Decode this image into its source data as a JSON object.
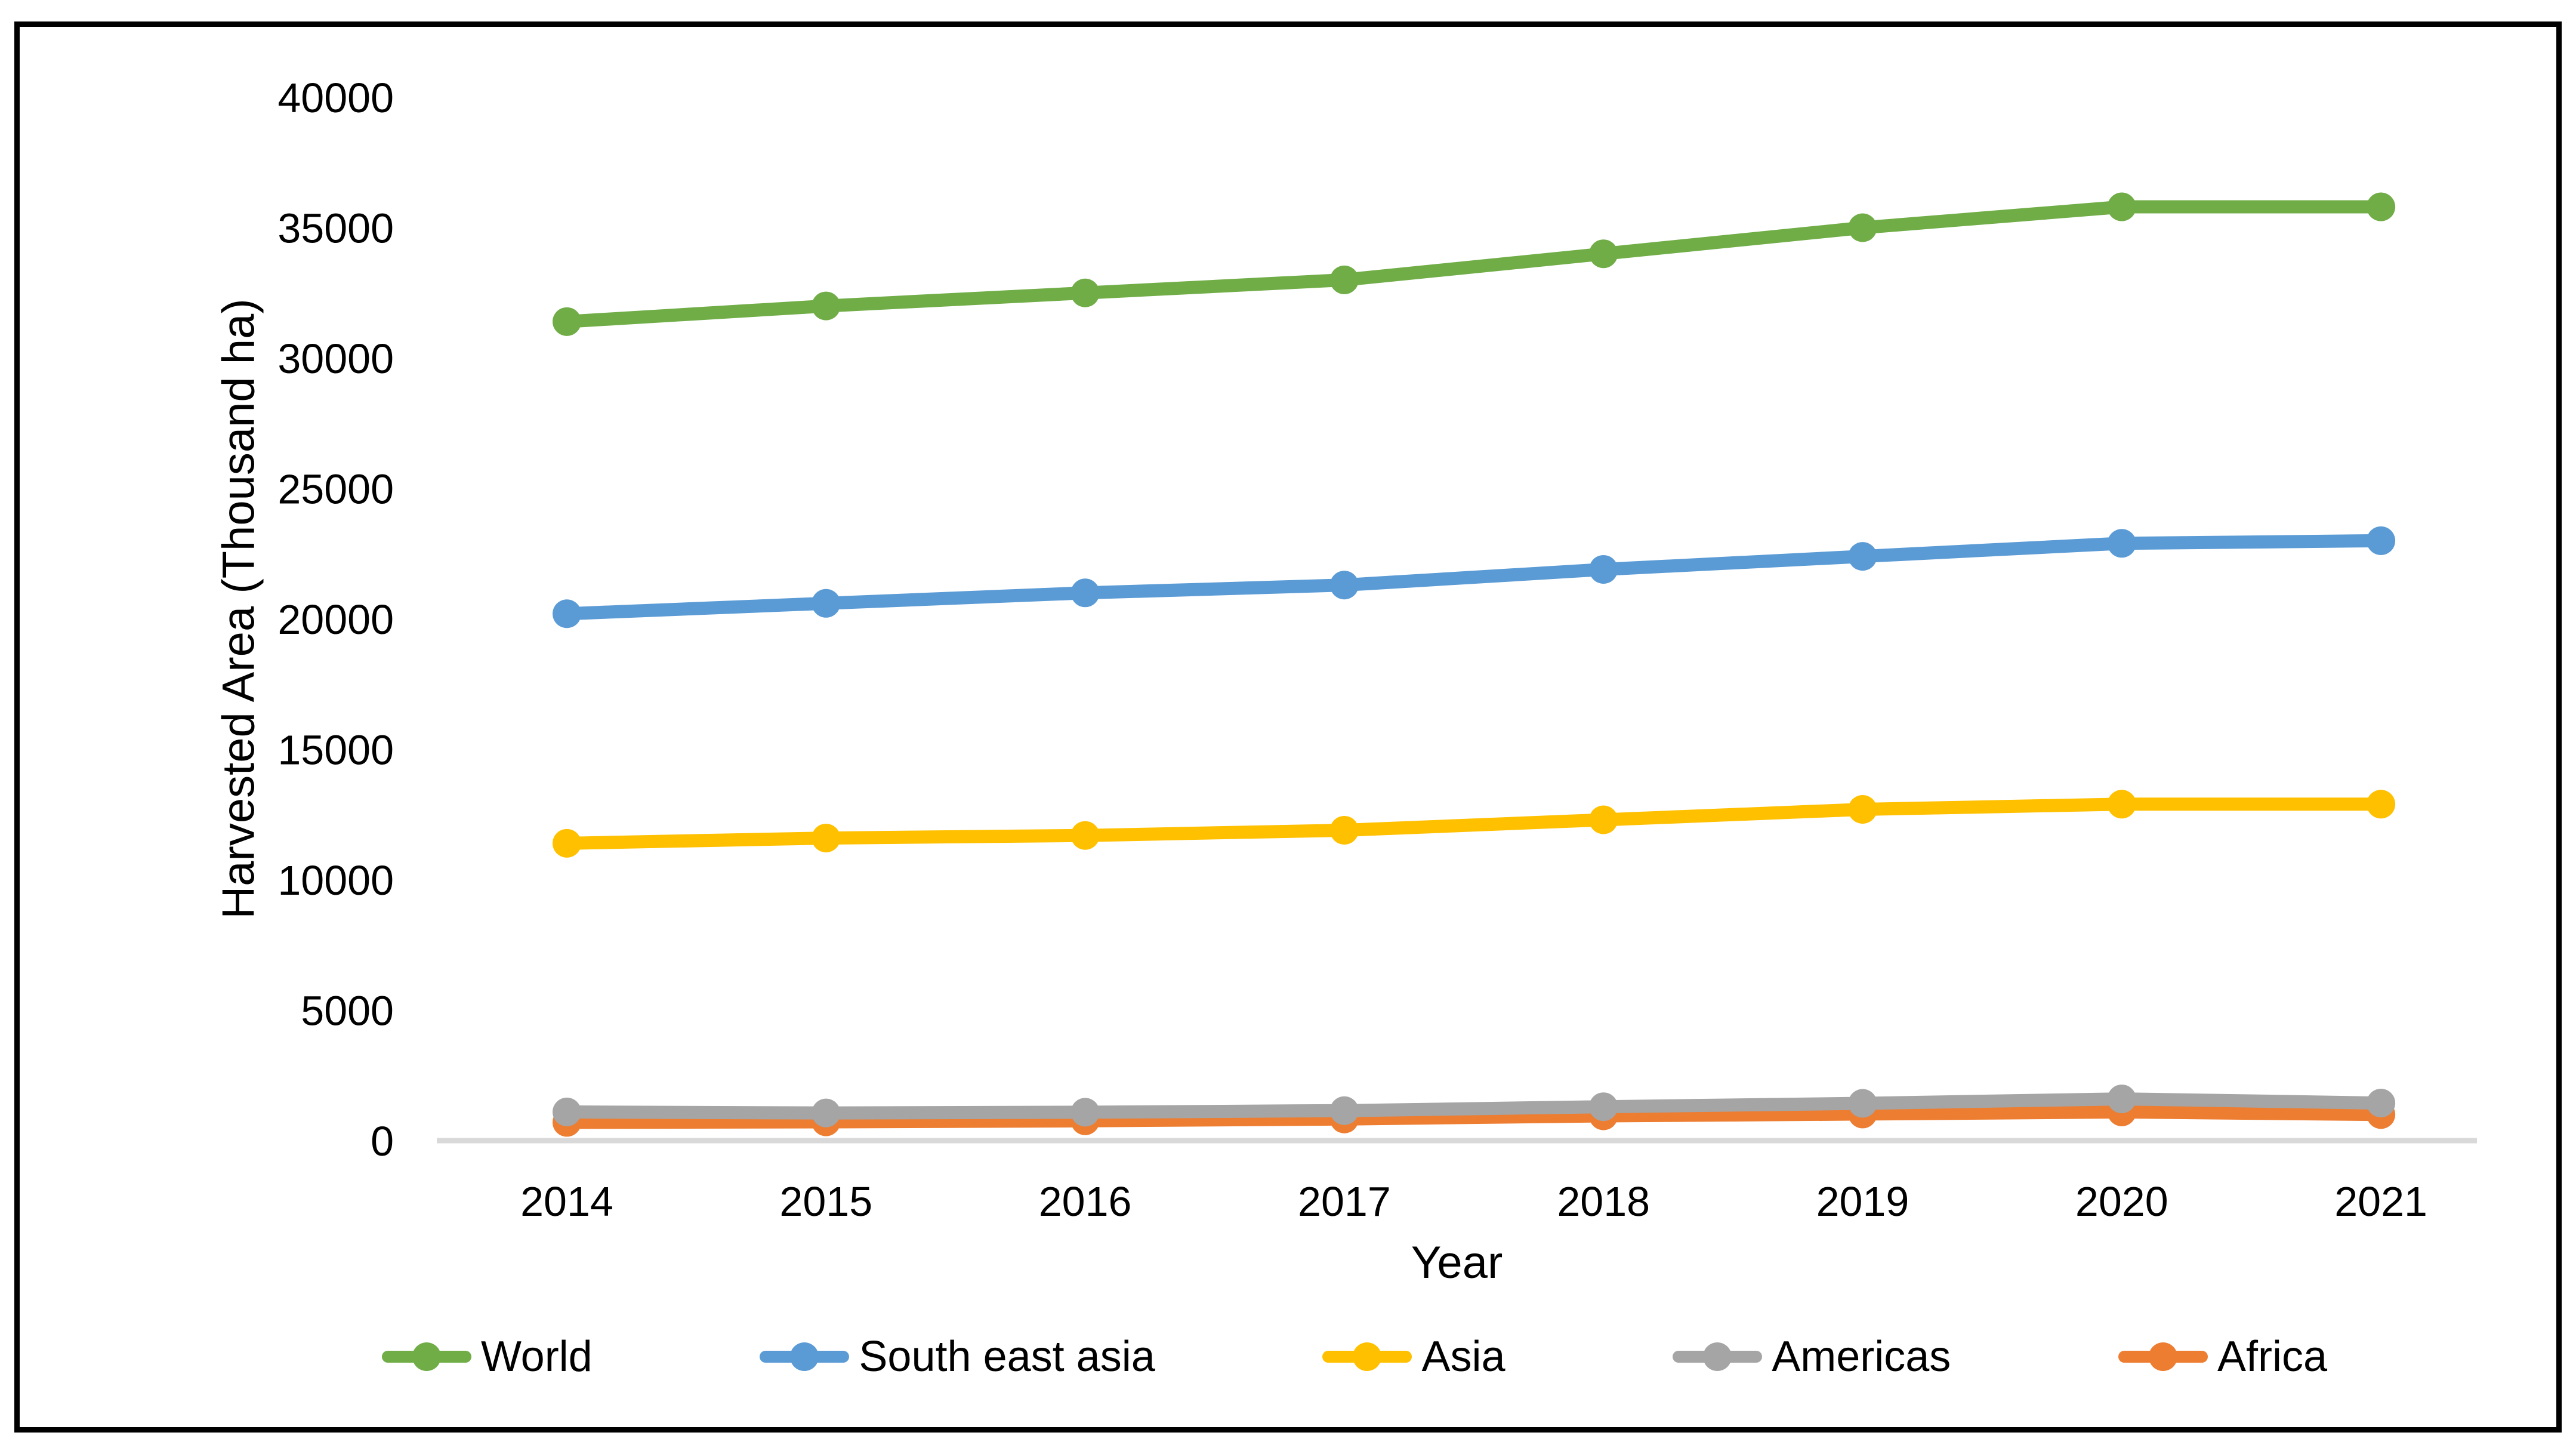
{
  "figure": {
    "background": "#FFFFFF",
    "border_color": "#000000"
  },
  "chart_data": {
    "type": "line",
    "title": "",
    "xlabel": "Year",
    "ylabel": "Harvested Area (Thousand ha)",
    "categories": [
      "2014",
      "2015",
      "2016",
      "2017",
      "2018",
      "2019",
      "2020",
      "2021"
    ],
    "series": [
      {
        "name": "World",
        "color": "#70AD47",
        "values": [
          31400,
          32000,
          32500,
          33000,
          34000,
          35000,
          35800,
          35800
        ]
      },
      {
        "name": "South east asia",
        "color": "#5B9BD5",
        "values": [
          20200,
          20600,
          21000,
          21300,
          21900,
          22400,
          22900,
          23000
        ]
      },
      {
        "name": "Asia",
        "color": "#FFC000",
        "values": [
          11400,
          11600,
          11700,
          11900,
          12300,
          12700,
          12900,
          12900
        ]
      },
      {
        "name": "Americas",
        "color": "#A5A5A5",
        "values": [
          1100,
          1060,
          1090,
          1150,
          1300,
          1430,
          1600,
          1440
        ]
      },
      {
        "name": "Africa",
        "color": "#ED7D31",
        "values": [
          700,
          720,
          760,
          830,
          950,
          1020,
          1100,
          1000
        ]
      }
    ],
    "ylim": [
      0,
      40000
    ],
    "yticks": [
      0,
      5000,
      10000,
      15000,
      20000,
      25000,
      30000,
      35000,
      40000
    ],
    "grid": false,
    "legend_position": "bottom",
    "axis_line_color": "#D9D9D9",
    "marker_style": "circle"
  }
}
